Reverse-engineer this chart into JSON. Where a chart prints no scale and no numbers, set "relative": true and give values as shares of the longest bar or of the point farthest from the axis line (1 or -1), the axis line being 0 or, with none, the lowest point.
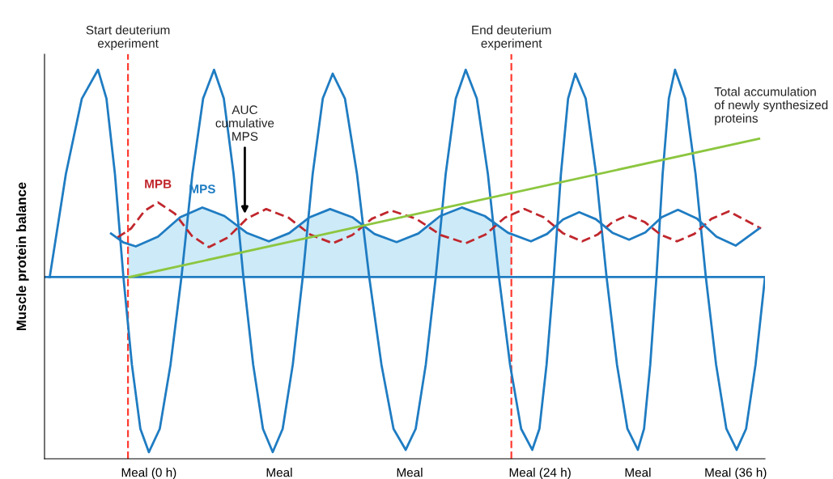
{
  "chart_data": {
    "type": "line",
    "relative": true,
    "ylabel": "Muscle protein balance",
    "xlim": [
      -6.4,
      37.8
    ],
    "xticks": [
      {
        "value": 0,
        "label": "Meal (0 h)"
      },
      {
        "value": 8,
        "label": "Meal"
      },
      {
        "value": 16,
        "label": "Meal"
      },
      {
        "value": 24,
        "label": "Meal (24 h)"
      },
      {
        "value": 30,
        "label": "Meal"
      },
      {
        "value": 36,
        "label": "Meal (36 h)"
      }
    ],
    "grid": false,
    "legend": false,
    "series": [
      {
        "type": "area",
        "color": "#cdeaf8",
        "x": [
          -1.28,
          -0.8,
          0.56,
          1.92,
          3.28,
          4.64,
          6.0,
          7.36,
          8.61,
          9.87,
          11.12,
          12.48,
          13.84,
          15.2,
          16.53,
          17.87,
          19.2,
          20.61,
          22.03,
          22.24
        ],
        "values": [
          0.55,
          0.546,
          0.571,
          0.621,
          0.646,
          0.624,
          0.581,
          0.559,
          0.58,
          0.621,
          0.642,
          0.621,
          0.578,
          0.557,
          0.579,
          0.624,
          0.646,
          0.624,
          0.581,
          0.577
        ]
      },
      {
        "color": "#1f7cc2",
        "line_style": "solid",
        "x": [
          -6.08,
          -5.09,
          -4.11,
          -3.12,
          -2.6,
          -2.08,
          -1.56,
          -1.04,
          -0.52,
          0,
          0.67,
          1.33,
          2.0,
          2.67,
          3.33,
          4,
          4.6,
          5.2,
          5.8,
          6.4,
          7.0,
          7.6,
          8.21,
          8.83,
          9.44,
          10.05,
          10.67,
          11.28,
          12.03,
          12.77,
          13.52,
          14.27,
          15.01,
          15.76,
          16.37,
          16.99,
          17.6,
          18.21,
          18.83,
          19.44,
          20.12,
          20.8,
          21.48,
          22.16,
          22.84,
          23.52,
          23.96,
          24.4,
          24.84,
          25.28,
          25.72,
          26.16,
          26.8,
          27.44,
          28.08,
          28.72,
          29.36,
          30,
          30.38,
          30.76,
          31.14,
          31.52,
          31.9,
          32.28,
          32.91,
          33.54,
          34.17,
          34.8,
          35.43,
          36.06,
          36.64,
          37.22,
          37.8
        ],
        "values": [
          0.467,
          0.732,
          0.926,
          1.0,
          0.926,
          0.732,
          0.467,
          0.242,
          0.077,
          0.017,
          0.077,
          0.242,
          0.467,
          0.732,
          0.926,
          1.0,
          0.926,
          0.732,
          0.467,
          0.242,
          0.077,
          0.017,
          0.077,
          0.242,
          0.467,
          0.732,
          0.926,
          0.99,
          0.926,
          0.732,
          0.467,
          0.242,
          0.077,
          0.023,
          0.077,
          0.242,
          0.467,
          0.732,
          0.926,
          1.0,
          0.926,
          0.732,
          0.467,
          0.242,
          0.077,
          0.023,
          0.077,
          0.242,
          0.467,
          0.732,
          0.926,
          0.99,
          0.926,
          0.732,
          0.467,
          0.242,
          0.077,
          0.023,
          0.077,
          0.242,
          0.467,
          0.732,
          0.926,
          1.0,
          0.926,
          0.732,
          0.467,
          0.242,
          0.077,
          0.023,
          0.077,
          0.242,
          0.467
        ]
      },
      {
        "name": "MPB",
        "color": "#c0272d",
        "line_style": "dashed",
        "x": [
          -1.92,
          -1.09,
          -0.27,
          0.56,
          1.6,
          2.64,
          3.68,
          4.85,
          6.03,
          7.2,
          8.56,
          9.92,
          11.28,
          12.48,
          13.68,
          14.88,
          16.4,
          17.92,
          19.44,
          20.64,
          21.84,
          23.04,
          24.22,
          25.4,
          26.58,
          27.52,
          28.46,
          29.4,
          30.4,
          31.4,
          32.4,
          33.46,
          34.52,
          35.58,
          36.57,
          37.56
        ],
        "values": [
          0.569,
          0.592,
          0.637,
          0.659,
          0.63,
          0.573,
          0.544,
          0.569,
          0.618,
          0.642,
          0.62,
          0.576,
          0.554,
          0.575,
          0.617,
          0.638,
          0.617,
          0.575,
          0.554,
          0.576,
          0.62,
          0.642,
          0.621,
          0.58,
          0.559,
          0.576,
          0.609,
          0.626,
          0.609,
          0.576,
          0.559,
          0.578,
          0.617,
          0.636,
          0.614,
          0.592
        ]
      },
      {
        "name": "MPS",
        "color": "#1f7cc2",
        "line_style": "solid",
        "x": [
          -2.32,
          -1.56,
          -0.8,
          0.56,
          1.92,
          3.28,
          4.64,
          6.0,
          7.36,
          8.61,
          9.87,
          11.12,
          12.48,
          13.84,
          15.2,
          16.53,
          17.87,
          19.2,
          20.61,
          22.03,
          23.44,
          24.43,
          25.41,
          26.4,
          27.42,
          28.44,
          29.46,
          30.46,
          31.46,
          32.46,
          33.64,
          34.82,
          36,
          37.44
        ],
        "values": [
          0.579,
          0.556,
          0.546,
          0.571,
          0.621,
          0.646,
          0.624,
          0.581,
          0.559,
          0.58,
          0.621,
          0.642,
          0.621,
          0.578,
          0.557,
          0.579,
          0.624,
          0.646,
          0.624,
          0.581,
          0.559,
          0.578,
          0.615,
          0.634,
          0.616,
          0.581,
          0.563,
          0.582,
          0.621,
          0.64,
          0.617,
          0.571,
          0.548,
          0.592
        ]
      },
      {
        "color": "#8cc63f",
        "line_style": "solid",
        "x": [
          -1.2,
          37.44
        ],
        "values": [
          0.467,
          0.823
        ]
      }
    ],
    "ref_lines": [
      {
        "axis": "y",
        "value": 0.467,
        "color": "#1f7cc2",
        "line_style": "solid"
      },
      {
        "axis": "x",
        "value": -1.28,
        "label": "Start deuterium\nexperiment",
        "color": "#ff3b30",
        "line_style": "dashed"
      },
      {
        "axis": "x",
        "value": 22.24,
        "label": "End deuterium\nexperiment",
        "color": "#ff3b30",
        "line_style": "dashed"
      }
    ],
    "annotations": [
      "AUC\ncumulative\nMPS",
      {
        "text": "Total accumulation\nof newly synthesized\nproteins",
        "x": 37.44,
        "y": 0.823
      }
    ]
  }
}
